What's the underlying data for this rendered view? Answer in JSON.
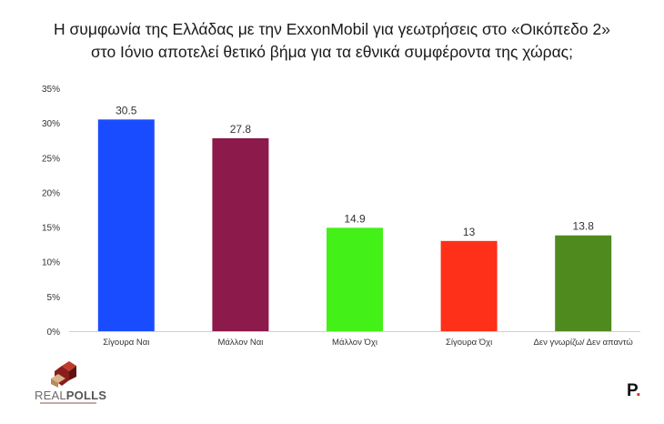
{
  "title": {
    "line1": "Η συμφωνία της Ελλάδας με την ExxonMobil για γεωτρήσεις στο «Οικόπεδο 2»",
    "line2": "στο Ιόνιο αποτελεί θετικό βήμα για τα εθνικά συμφέροντα της χώρας;"
  },
  "chart_data": {
    "type": "bar",
    "categories": [
      "Σίγουρα Ναι",
      "Μάλλον Ναι",
      "Μάλλον Όχι",
      "Σίγουρα Όχι",
      "Δεν γνωρίζω/ Δεν απαντώ"
    ],
    "values": [
      30.5,
      27.8,
      14.9,
      13,
      13.8
    ],
    "data_labels": [
      "30.5",
      "27.8",
      "14.9",
      "13",
      "13.8"
    ],
    "colors": [
      "#1a4cff",
      "#8c1a4a",
      "#43f017",
      "#ff3019",
      "#4f8a1f"
    ],
    "ylim": [
      0,
      35
    ],
    "yticks": [
      0,
      5,
      10,
      15,
      20,
      25,
      30,
      35
    ],
    "ytick_labels": [
      "0%",
      "5%",
      "10%",
      "15%",
      "20%",
      "25%",
      "30%",
      "35%"
    ],
    "grid": false,
    "legend": "none"
  },
  "branding": {
    "left_logo_text_a": "REAL",
    "left_logo_text_b": "POLLS",
    "right_logo_letter": "P",
    "right_logo_dot": "."
  }
}
